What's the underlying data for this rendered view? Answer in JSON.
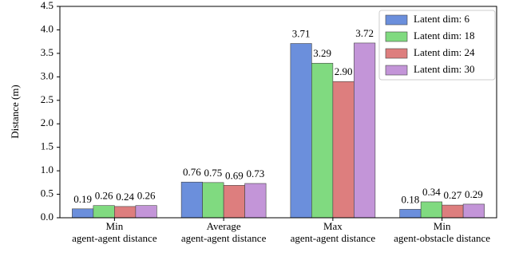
{
  "chart_data": {
    "type": "bar",
    "y_label": "Distance (m)",
    "categories": [
      [
        "Min",
        "agent-agent distance"
      ],
      [
        "Average",
        "agent-agent distance"
      ],
      [
        "Max",
        "agent-agent distance"
      ],
      [
        "Min",
        "agent-obstacle distance"
      ]
    ],
    "series": [
      {
        "name": "Latent dim: 6",
        "color": "#6b8fdc",
        "values": [
          0.19,
          0.76,
          3.71,
          0.18
        ],
        "value_labels": [
          "0.19",
          "0.76",
          "3.71",
          "0.18"
        ]
      },
      {
        "name": "Latent dim: 18",
        "color": "#80da80",
        "values": [
          0.26,
          0.75,
          3.29,
          0.34
        ],
        "value_labels": [
          "0.26",
          "0.75",
          "3.29",
          "0.34"
        ]
      },
      {
        "name": "Latent dim: 24",
        "color": "#dd7e7e",
        "values": [
          0.24,
          0.69,
          2.9,
          0.27
        ],
        "value_labels": [
          "0.24",
          "0.69",
          "2.90",
          "0.27"
        ]
      },
      {
        "name": "Latent dim: 30",
        "color": "#c395d8",
        "values": [
          0.26,
          0.73,
          3.72,
          0.29
        ],
        "value_labels": [
          "0.26",
          "0.73",
          "3.72",
          "0.29"
        ]
      }
    ],
    "ylim": [
      0,
      4.5
    ],
    "yticks": [
      {
        "value": 0,
        "label": "0.0"
      },
      0.5,
      {
        "value": 1,
        "label": "1.0"
      },
      1.5,
      {
        "value": 2,
        "label": "2.0"
      },
      2.5,
      {
        "value": 3,
        "label": "3.0"
      },
      3.5,
      {
        "value": 4,
        "label": "4.0"
      },
      4.5
    ],
    "legend": "upper right"
  }
}
